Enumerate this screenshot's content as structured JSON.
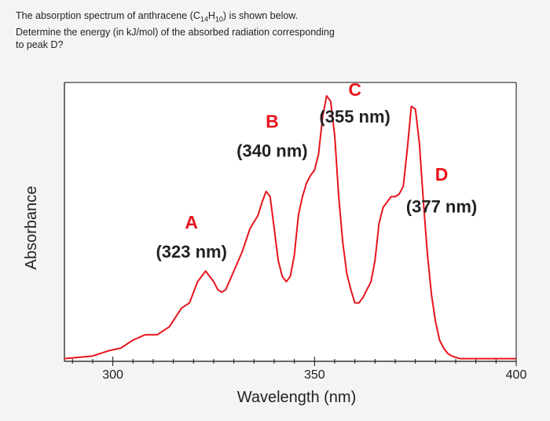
{
  "question": {
    "line1_pre": "The absorption spectrum of anthracene (C",
    "sub1": "14",
    "mid": "H",
    "sub2": "10",
    "line1_post": ") is shown below.",
    "line2": "Determine the energy (in kJ/mol) of the absorbed radiation corresponding",
    "line3": "to peak D?"
  },
  "colors": {
    "curve": "#e8141c",
    "peak_letter": "#e8141c",
    "text": "#222222",
    "axes": "#111111",
    "plot_bg": "#ffffff"
  },
  "chart_data": {
    "type": "line",
    "xlabel": "Wavelength (nm)",
    "ylabel": "Absorbance",
    "xlim": [
      288,
      400
    ],
    "ylim": [
      0,
      1
    ],
    "xticks": [
      300,
      350,
      400
    ],
    "grid": false,
    "series": [
      {
        "x": [
          288,
          295,
          299,
          302,
          305,
          308,
          311,
          314,
          317,
          319,
          321,
          323,
          325,
          326,
          327,
          328,
          330,
          332,
          334,
          336,
          337,
          338,
          339,
          340,
          341,
          342,
          343,
          344,
          345,
          346,
          347,
          348,
          349,
          350,
          351,
          352,
          353,
          354,
          355,
          356,
          357,
          358,
          359,
          360,
          361,
          362,
          363,
          364,
          365,
          366,
          367,
          368,
          369,
          370,
          371,
          372,
          373,
          374,
          375,
          376,
          377,
          378,
          379,
          380,
          381,
          382,
          383,
          384,
          385,
          386,
          388,
          390,
          393,
          396,
          400
        ],
        "y": [
          0.01,
          0.02,
          0.04,
          0.05,
          0.08,
          0.1,
          0.1,
          0.13,
          0.2,
          0.22,
          0.3,
          0.34,
          0.3,
          0.27,
          0.26,
          0.27,
          0.34,
          0.41,
          0.5,
          0.55,
          0.6,
          0.64,
          0.62,
          0.5,
          0.38,
          0.32,
          0.3,
          0.32,
          0.4,
          0.55,
          0.62,
          0.67,
          0.7,
          0.72,
          0.78,
          0.92,
          1.0,
          0.98,
          0.85,
          0.62,
          0.45,
          0.33,
          0.27,
          0.22,
          0.22,
          0.24,
          0.27,
          0.3,
          0.38,
          0.52,
          0.58,
          0.6,
          0.62,
          0.62,
          0.63,
          0.66,
          0.8,
          0.96,
          0.95,
          0.82,
          0.6,
          0.4,
          0.25,
          0.15,
          0.08,
          0.05,
          0.03,
          0.02,
          0.015,
          0.01,
          0.01,
          0.01,
          0.01,
          0.01,
          0.01
        ]
      }
    ],
    "annotations": [
      {
        "letter": "A",
        "label": "(323 nm)",
        "x": 319.5,
        "y_letter": 0.5,
        "y_label": 0.39
      },
      {
        "letter": "B",
        "label": "(340 nm)",
        "x": 339.5,
        "y_letter": 0.88,
        "y_label": 0.77
      },
      {
        "letter": "C",
        "label": "(355 nm)",
        "x": 360,
        "y_letter": 1.0,
        "y_label": 0.9
      },
      {
        "letter": "D",
        "label": "(377 nm)",
        "x": 381.5,
        "y_letter": 0.68,
        "y_label": 0.56
      }
    ]
  }
}
